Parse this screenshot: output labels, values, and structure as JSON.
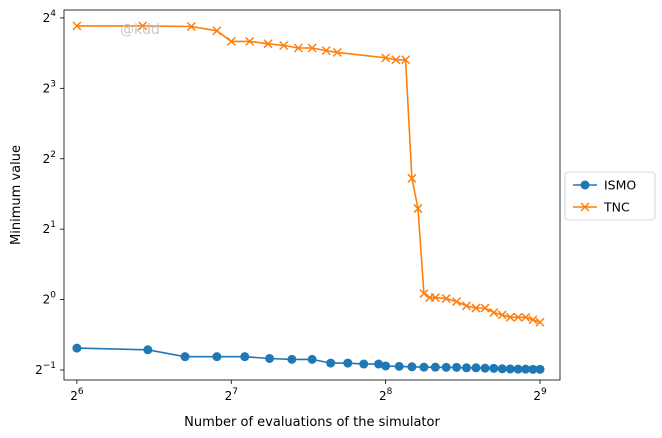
{
  "chart_data": {
    "type": "line",
    "xlabel": "Number of evaluations of the simulator",
    "ylabel": "Minimum value",
    "xscale": "log2",
    "yscale": "log2",
    "xlim": [
      60.4,
      560
    ],
    "ylim": [
      0.453,
      17.3
    ],
    "x_ticks": [
      {
        "value": 64,
        "base": "2",
        "exp": "6"
      },
      {
        "value": 128,
        "base": "2",
        "exp": "7"
      },
      {
        "value": 256,
        "base": "2",
        "exp": "8"
      },
      {
        "value": 512,
        "base": "2",
        "exp": "9"
      }
    ],
    "y_ticks": [
      {
        "value": 0.5,
        "base": "2",
        "exp": "−1"
      },
      {
        "value": 1,
        "base": "2",
        "exp": "0"
      },
      {
        "value": 2,
        "base": "2",
        "exp": "1"
      },
      {
        "value": 4,
        "base": "2",
        "exp": "2"
      },
      {
        "value": 8,
        "base": "2",
        "exp": "3"
      },
      {
        "value": 16,
        "base": "2",
        "exp": "4"
      }
    ],
    "legend_position": "outside-right",
    "watermark": "@kdd",
    "series": [
      {
        "name": "ISMO",
        "color": "#1f77b4",
        "marker": "circle",
        "x": [
          64,
          88,
          104,
          120,
          136,
          152,
          168,
          184,
          200,
          216,
          232,
          248,
          256,
          272,
          288,
          304,
          320,
          336,
          352,
          368,
          384,
          400,
          416,
          432,
          448,
          464,
          480,
          496,
          512
        ],
        "y": [
          0.62,
          0.61,
          0.57,
          0.57,
          0.57,
          0.56,
          0.555,
          0.555,
          0.535,
          0.535,
          0.53,
          0.53,
          0.52,
          0.518,
          0.516,
          0.514,
          0.514,
          0.513,
          0.513,
          0.511,
          0.511,
          0.509,
          0.508,
          0.506,
          0.505,
          0.504,
          0.504,
          0.503,
          0.503
        ]
      },
      {
        "name": "TNC",
        "color": "#ff7f0e",
        "marker": "x",
        "x": [
          64,
          86,
          107,
          120,
          128,
          139,
          151,
          162,
          173,
          184,
          196,
          206,
          256,
          268,
          280,
          288,
          296,
          304,
          312,
          320,
          336,
          352,
          368,
          384,
          400,
          416,
          432,
          448,
          464,
          480,
          496,
          512
        ],
        "y": [
          14.8,
          14.8,
          14.7,
          14.1,
          12.7,
          12.7,
          12.4,
          12.2,
          11.9,
          11.9,
          11.6,
          11.4,
          10.8,
          10.6,
          10.6,
          3.3,
          2.45,
          1.06,
          1.02,
          1.02,
          1.01,
          0.98,
          0.94,
          0.92,
          0.92,
          0.88,
          0.86,
          0.84,
          0.84,
          0.84,
          0.82,
          0.8
        ]
      }
    ]
  }
}
